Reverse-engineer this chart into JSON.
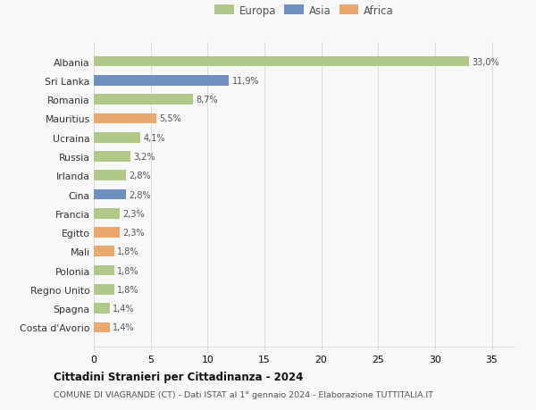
{
  "countries": [
    "Albania",
    "Sri Lanka",
    "Romania",
    "Mauritius",
    "Ucraina",
    "Russia",
    "Irlanda",
    "Cina",
    "Francia",
    "Egitto",
    "Mali",
    "Polonia",
    "Regno Unito",
    "Spagna",
    "Costa d'Avorio"
  ],
  "values": [
    33.0,
    11.9,
    8.7,
    5.5,
    4.1,
    3.2,
    2.8,
    2.8,
    2.3,
    2.3,
    1.8,
    1.8,
    1.8,
    1.4,
    1.4
  ],
  "labels": [
    "33,0%",
    "11,9%",
    "8,7%",
    "5,5%",
    "4,1%",
    "3,2%",
    "2,8%",
    "2,8%",
    "2,3%",
    "2,3%",
    "1,8%",
    "1,8%",
    "1,8%",
    "1,4%",
    "1,4%"
  ],
  "continents": [
    "Europa",
    "Asia",
    "Europa",
    "Africa",
    "Europa",
    "Europa",
    "Europa",
    "Asia",
    "Europa",
    "Africa",
    "Africa",
    "Europa",
    "Europa",
    "Europa",
    "Africa"
  ],
  "colors": {
    "Asia": "#6f8fbe",
    "Africa": "#e8a870"
  },
  "legend_colors_order": [
    "Europa",
    "Asia",
    "Africa"
  ],
  "colors_map": {
    "Europa": "#b0c98a",
    "Asia": "#6f8fbe",
    "Africa": "#e8a870"
  },
  "title": "Cittadini Stranieri per Cittadinanza - 2024",
  "subtitle": "COMUNE DI VIAGRANDE (CT) - Dati ISTAT al 1° gennaio 2024 - Elaborazione TUTTITALIA.IT",
  "xlim": [
    0,
    37
  ],
  "xticks": [
    0,
    5,
    10,
    15,
    20,
    25,
    30,
    35
  ],
  "background_color": "#f8f8f8",
  "grid_color": "#dddddd",
  "bar_height": 0.55,
  "bar_alpha": 1.0
}
